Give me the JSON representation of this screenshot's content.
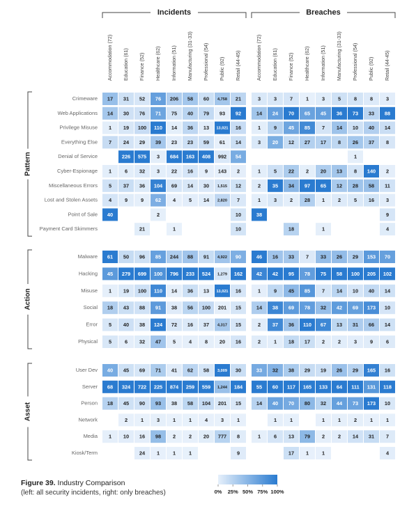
{
  "chart_data": {
    "type": "heatmap",
    "groups": [
      {
        "title": "Incidents"
      },
      {
        "title": "Breaches"
      }
    ],
    "columns": [
      "Accommodation (72)",
      "Education (61)",
      "Finance (52)",
      "Healthcare (62)",
      "Information (51)",
      "Manufacturing (31-33)",
      "Professional (54)",
      "Public (92)",
      "Retail (44-45)"
    ],
    "sections": [
      {
        "title": "Pattern",
        "rows": [
          {
            "label": "Crimeware",
            "cells": [
              [
                17,
                31,
                52,
                76,
                206,
                58,
                60,
                {
                  "value": 4758,
                  "label": "4,758"
                },
                21
              ],
              [
                3,
                3,
                7,
                1,
                3,
                5,
                8,
                8,
                3
              ]
            ]
          },
          {
            "label": "Web Applications",
            "cells": [
              [
                14,
                30,
                76,
                71,
                75,
                40,
                79,
                93,
                92
              ],
              [
                14,
                24,
                70,
                65,
                45,
                36,
                73,
                33,
                88
              ]
            ]
          },
          {
            "label": "Privilege Misuse",
            "cells": [
              [
                1,
                19,
                100,
                110,
                14,
                36,
                13,
                {
                  "value": 13021,
                  "label": "13,021"
                },
                16
              ],
              [
                1,
                9,
                45,
                85,
                7,
                14,
                10,
                40,
                14
              ]
            ]
          },
          {
            "label": "Everything Else",
            "cells": [
              [
                7,
                24,
                29,
                39,
                23,
                23,
                59,
                61,
                14
              ],
              [
                3,
                20,
                12,
                27,
                17,
                8,
                26,
                37,
                8
              ]
            ]
          },
          {
            "label": "Denial of Service",
            "cells": [
              [
                null,
                226,
                575,
                3,
                684,
                163,
                408,
                992,
                54
              ],
              [
                null,
                null,
                null,
                null,
                null,
                null,
                1,
                null,
                null
              ]
            ]
          },
          {
            "label": "Cyber-Espionage",
            "cells": [
              [
                1,
                6,
                32,
                3,
                22,
                16,
                9,
                143,
                2
              ],
              [
                1,
                5,
                22,
                2,
                20,
                13,
                8,
                140,
                2
              ]
            ]
          },
          {
            "label": "Miscellaneous Errors",
            "cells": [
              [
                5,
                37,
                36,
                104,
                69,
                14,
                30,
                {
                  "value": 1515,
                  "label": "1,515"
                },
                12
              ],
              [
                2,
                35,
                34,
                97,
                65,
                12,
                28,
                58,
                11
              ]
            ]
          },
          {
            "label": "Lost and Stolen Assets",
            "cells": [
              [
                4,
                9,
                9,
                62,
                4,
                5,
                14,
                {
                  "value": 2820,
                  "label": "2,820"
                },
                7
              ],
              [
                1,
                3,
                2,
                28,
                1,
                2,
                5,
                16,
                3
              ]
            ]
          },
          {
            "label": "Point of Sale",
            "cells": [
              [
                40,
                null,
                null,
                2,
                null,
                null,
                null,
                null,
                10
              ],
              [
                38,
                null,
                null,
                null,
                null,
                null,
                null,
                null,
                9
              ]
            ]
          },
          {
            "label": "Payment Card Skimmers",
            "cells": [
              [
                null,
                null,
                21,
                null,
                1,
                null,
                null,
                null,
                10
              ],
              [
                null,
                null,
                18,
                null,
                1,
                null,
                null,
                null,
                4
              ]
            ]
          }
        ]
      },
      {
        "title": "Action",
        "rows": [
          {
            "label": "Malware",
            "cells": [
              [
                61,
                50,
                96,
                85,
                244,
                88,
                91,
                {
                  "value": 4922,
                  "label": "4,922"
                },
                90
              ],
              [
                46,
                16,
                33,
                7,
                33,
                26,
                29,
                153,
                70
              ]
            ]
          },
          {
            "label": "Hacking",
            "cells": [
              [
                45,
                279,
                699,
                100,
                796,
                233,
                524,
                {
                  "value": 1279,
                  "label": "1,279"
                },
                162
              ],
              [
                42,
                42,
                95,
                78,
                75,
                58,
                100,
                205,
                102
              ]
            ]
          },
          {
            "label": "Misuse",
            "cells": [
              [
                1,
                19,
                100,
                110,
                14,
                36,
                13,
                {
                  "value": 13021,
                  "label": "13,021"
                },
                16
              ],
              [
                1,
                9,
                45,
                85,
                7,
                14,
                10,
                40,
                14
              ]
            ]
          },
          {
            "label": "Social",
            "cells": [
              [
                18,
                43,
                88,
                91,
                38,
                56,
                100,
                201,
                15
              ],
              [
                14,
                38,
                69,
                78,
                32,
                42,
                69,
                173,
                10
              ]
            ]
          },
          {
            "label": "Error",
            "cells": [
              [
                5,
                40,
                38,
                124,
                72,
                16,
                37,
                {
                  "value": 4317,
                  "label": "4,317"
                },
                15
              ],
              [
                2,
                37,
                36,
                110,
                67,
                13,
                31,
                66,
                14
              ]
            ]
          },
          {
            "label": "Physical",
            "cells": [
              [
                5,
                6,
                32,
                47,
                5,
                4,
                8,
                20,
                16
              ],
              [
                2,
                1,
                18,
                17,
                2,
                2,
                3,
                9,
                6
              ]
            ]
          }
        ]
      },
      {
        "title": "Asset",
        "rows": [
          {
            "label": "User Dev",
            "cells": [
              [
                40,
                45,
                69,
                71,
                41,
                62,
                58,
                {
                  "value": 3009,
                  "label": "3,009"
                },
                30
              ],
              [
                33,
                32,
                38,
                29,
                19,
                26,
                29,
                165,
                16
              ]
            ]
          },
          {
            "label": "Server",
            "cells": [
              [
                68,
                324,
                722,
                225,
                874,
                259,
                559,
                {
                  "value": 1244,
                  "label": "1,244"
                },
                184
              ],
              [
                55,
                60,
                117,
                165,
                133,
                64,
                111,
                131,
                118
              ]
            ]
          },
          {
            "label": "Person",
            "cells": [
              [
                18,
                45,
                90,
                93,
                38,
                58,
                104,
                201,
                15
              ],
              [
                14,
                40,
                70,
                80,
                32,
                44,
                73,
                173,
                10
              ]
            ]
          },
          {
            "label": "Network",
            "cells": [
              [
                null,
                2,
                1,
                3,
                1,
                1,
                4,
                3,
                1
              ],
              [
                null,
                1,
                1,
                null,
                1,
                1,
                2,
                1,
                1
              ]
            ]
          },
          {
            "label": "Media",
            "cells": [
              [
                1,
                10,
                16,
                98,
                2,
                2,
                20,
                777,
                8
              ],
              [
                1,
                6,
                13,
                79,
                2,
                2,
                14,
                31,
                7
              ]
            ]
          },
          {
            "label": "Kiosk/Term",
            "cells": [
              [
                null,
                null,
                24,
                1,
                1,
                1,
                null,
                null,
                9
              ],
              [
                null,
                null,
                17,
                1,
                1,
                null,
                null,
                null,
                4
              ]
            ]
          }
        ]
      }
    ],
    "legend": {
      "ticks": [
        {
          "value": 0,
          "label": "0%"
        },
        {
          "value": 25,
          "label": "25%"
        },
        {
          "value": 50,
          "label": "50%"
        },
        {
          "value": 75,
          "label": "75%"
        },
        {
          "value": 100,
          "label": "100%"
        }
      ]
    },
    "caption": {
      "figure": "Figure 39.",
      "title": "Industry Comparison",
      "note": "(left: all security incidents, right: only breaches)"
    }
  }
}
